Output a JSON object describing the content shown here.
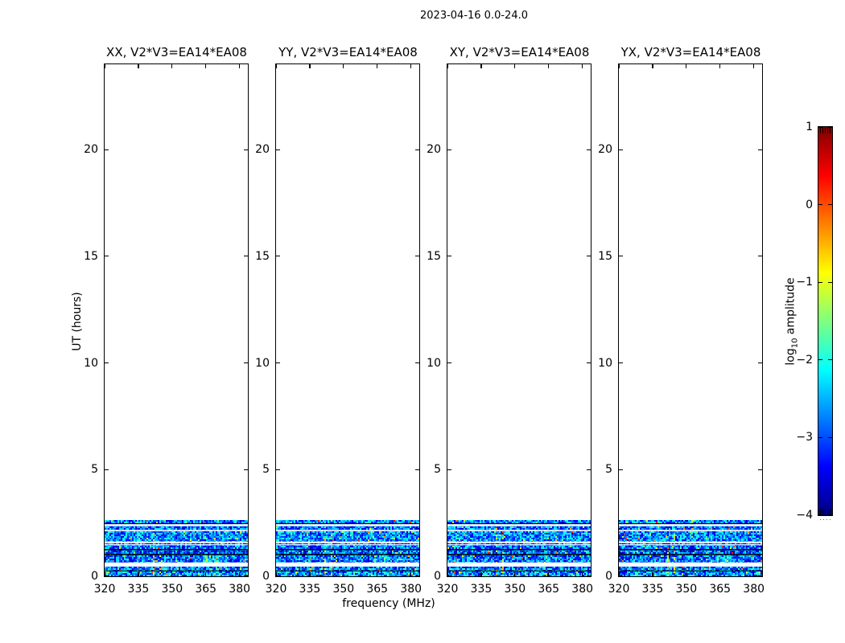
{
  "figure": {
    "title": "2023-04-16 0.0-24.0",
    "background_color": "#ffffff",
    "text_color": "#000000"
  },
  "chart_data": {
    "type": "heatmap",
    "title": "2023-04-16 0.0-24.0",
    "xlabel": "frequency (MHz)",
    "ylabel": "UT (hours)",
    "x_range": [
      320,
      383.7
    ],
    "x_ticks": [
      320,
      335,
      350,
      365,
      380
    ],
    "x_tick_labels": [
      "320",
      "335",
      "350",
      "365",
      "380"
    ],
    "y_range": [
      0,
      24
    ],
    "y_ticks": [
      0,
      5,
      10,
      15,
      20
    ],
    "y_tick_labels": [
      "0",
      "5",
      "10",
      "15",
      "20"
    ],
    "grid": false,
    "panels": [
      {
        "polarization": "XX",
        "baseline": "V2*V3=EA14*EA08",
        "title": "XX, V2*V3=EA14*EA08"
      },
      {
        "polarization": "YY",
        "baseline": "V2*V3=EA14*EA08",
        "title": "YY, V2*V3=EA14*EA08"
      },
      {
        "polarization": "XY",
        "baseline": "V2*V3=EA14*EA08",
        "title": "XY, V2*V3=EA14*EA08"
      },
      {
        "polarization": "YX",
        "baseline": "V2*V3=EA14*EA08",
        "title": "YX, V2*V3=EA14*EA08"
      }
    ],
    "colorbar": {
      "label": "log10 amplitude",
      "label_log": "log",
      "label_sub": "10",
      "label_rest": " amplitude",
      "colormap": "jet",
      "range": [
        -4,
        1
      ],
      "ticks": [
        1,
        0,
        -1,
        -2,
        -3,
        -4
      ],
      "tick_labels": [
        "1",
        "0",
        "−1",
        "−2",
        "−3",
        "−4"
      ],
      "legend_position": "right"
    },
    "data_description": {
      "time_coverage_hours": [
        0,
        2.64
      ],
      "blank_above_hours": 2.64,
      "background_log10_amplitude_range": [
        -3.8,
        -2.0
      ],
      "flagged_white_gaps_hours": [
        [
          0.455,
          0.65
        ],
        [
          1.455,
          1.5
        ],
        [
          1.555,
          1.63
        ],
        [
          2.115,
          2.175
        ],
        [
          2.35,
          2.445
        ]
      ],
      "flagged_black_lines_hours": [
        [
          0.235,
          0.275
        ],
        [
          0.995,
          1.05
        ],
        [
          1.225,
          1.28
        ],
        [
          2.445,
          2.49
        ]
      ],
      "rfi_frequencies_mhz": [
        341.5,
        344.5
      ],
      "bright_patch": {
        "freq_mhz": [
          363,
          371
        ],
        "hours": [
          0.65,
          1.05
        ]
      },
      "dense_block_hours": [
        1.63,
        2.115
      ],
      "bright_bottom_hours": [
        0,
        0.45
      ]
    }
  }
}
